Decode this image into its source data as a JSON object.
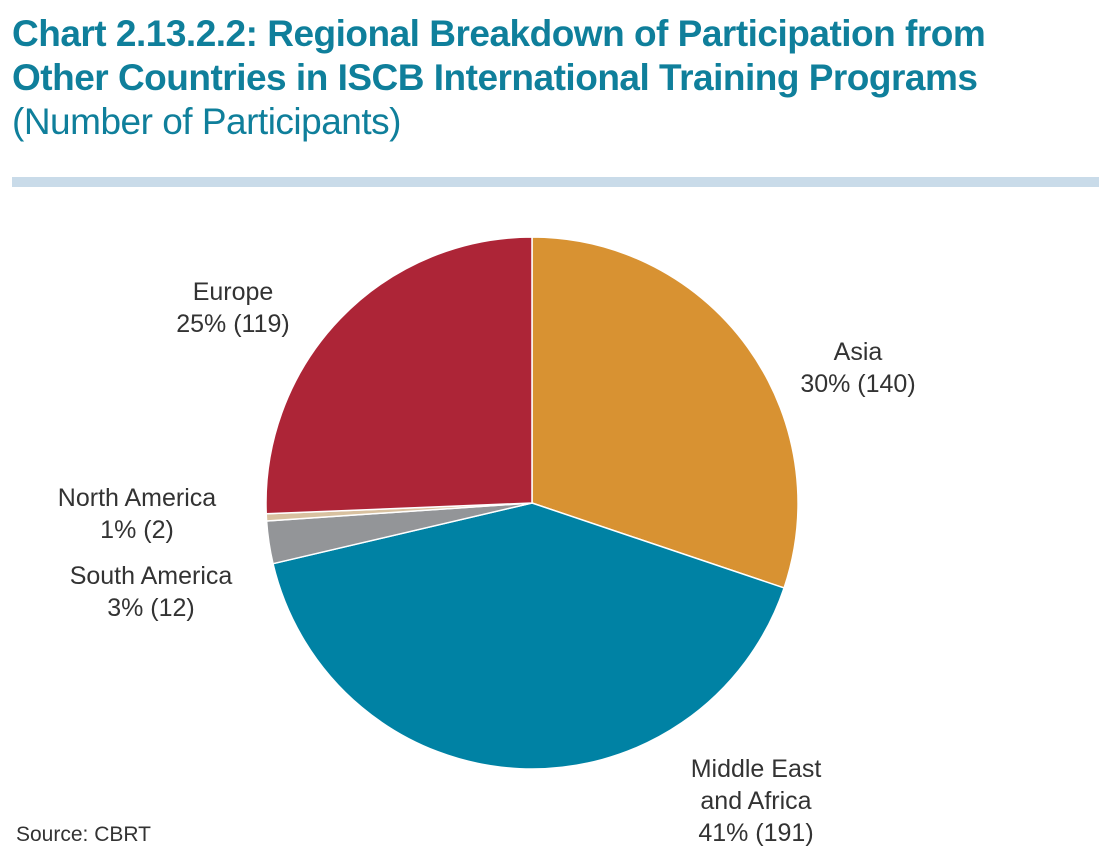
{
  "title": {
    "line1": "Chart 2.13.2.2: Regional Breakdown of Participation from",
    "line2": "Other Countries in ISCB International Training Programs",
    "subtitle": "(Number of Participants)"
  },
  "source": "Source: CBRT",
  "chart_data": {
    "type": "pie",
    "title": "Chart 2.13.2.2: Regional Breakdown of Participation from Other Countries in ISCB International Training Programs",
    "subtitle": "(Number of Participants)",
    "slices": [
      {
        "name": "Asia",
        "value": 140,
        "percent_label": "30% (140)",
        "color": "#d89232"
      },
      {
        "name": "Middle East and Africa",
        "name_lines": [
          "Middle East",
          "and Africa"
        ],
        "value": 191,
        "percent_label": "41% (191)",
        "color": "#0082a4"
      },
      {
        "name": "South America",
        "value": 12,
        "percent_label": "3% (12)",
        "color": "#939598"
      },
      {
        "name": "North America",
        "value": 2,
        "percent_label": "1% (2)",
        "color": "#d8c1a0"
      },
      {
        "name": "Europe",
        "value": 119,
        "percent_label": "25% (119)",
        "color": "#ad2537"
      }
    ],
    "start_angle": "12 o'clock",
    "direction": "clockwise",
    "legend": "none (direct labels)"
  }
}
